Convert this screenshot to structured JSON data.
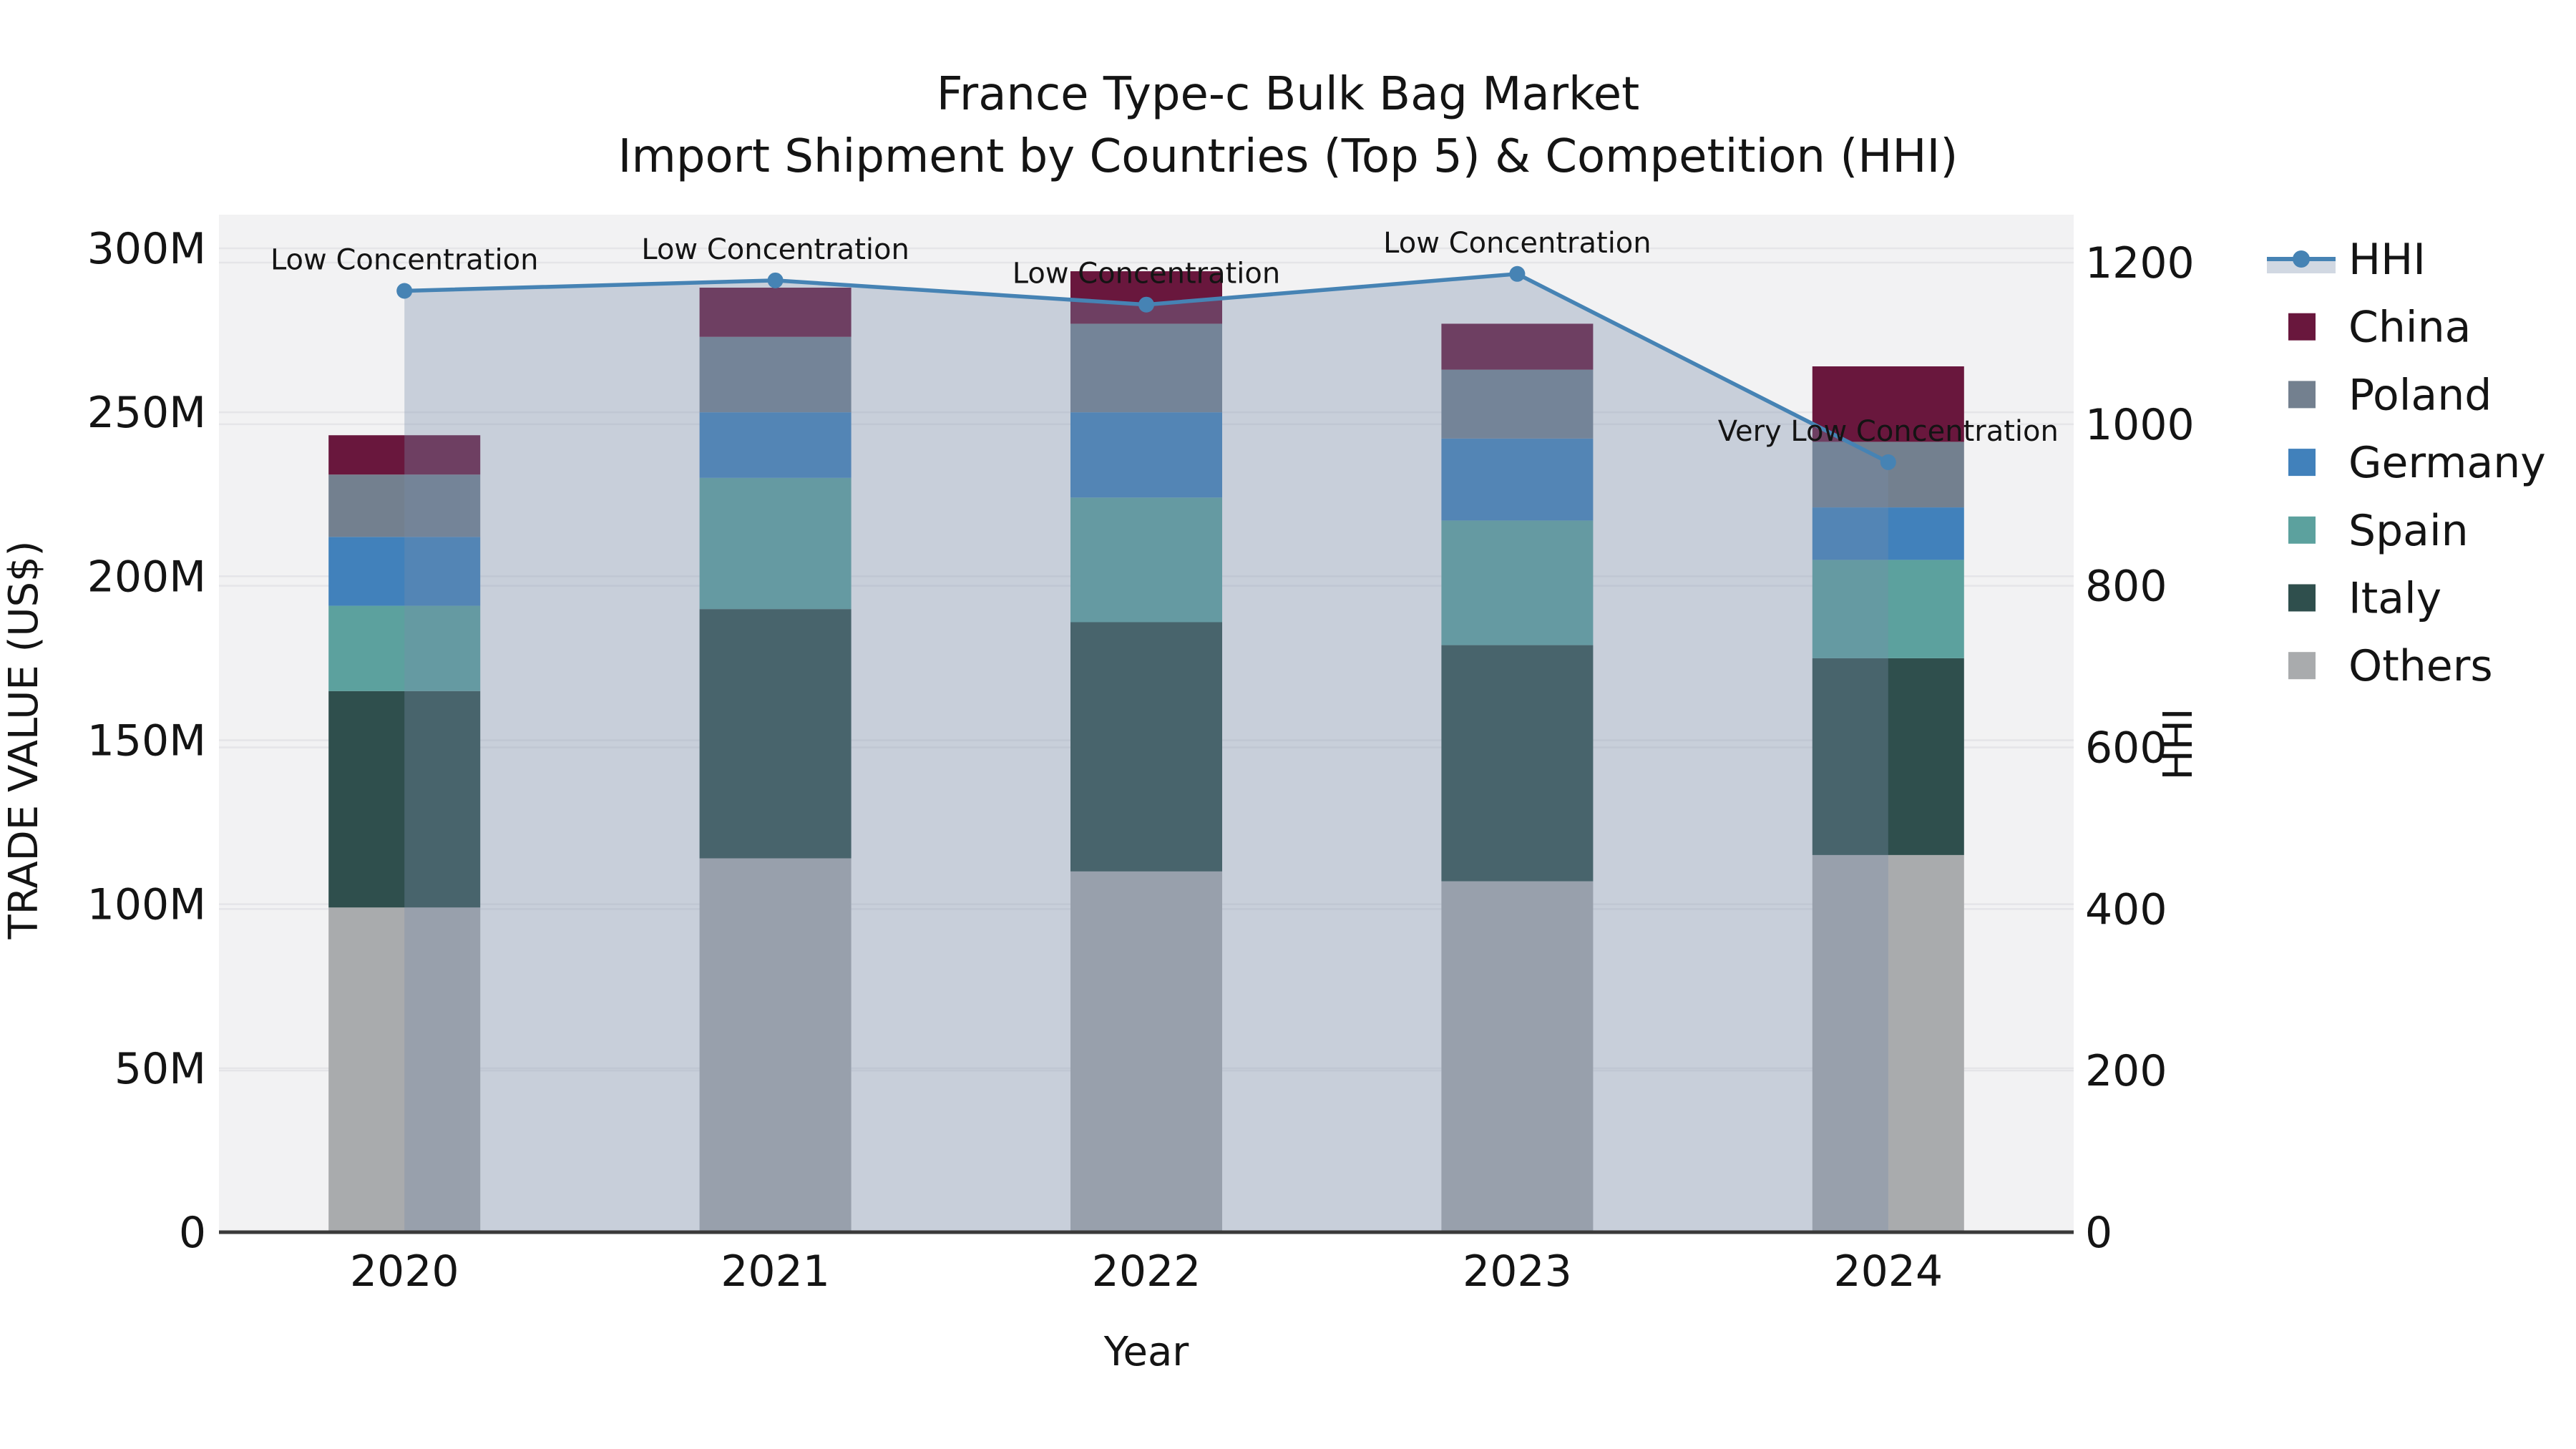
{
  "title": {
    "line1": "France Type-c Bulk Bag Market",
    "line2": "Import Shipment by Countries (Top 5) & Competition (HHI)"
  },
  "chart_data": {
    "type": "bar+line",
    "categories": [
      "2020",
      "2021",
      "2022",
      "2023",
      "2024"
    ],
    "bar_series": [
      {
        "name": "Others",
        "color": "#a9abad",
        "values": [
          99,
          114,
          110,
          107,
          115
        ]
      },
      {
        "name": "Italy",
        "color": "#2f4f4d",
        "values": [
          66,
          76,
          76,
          72,
          60
        ]
      },
      {
        "name": "Spain",
        "color": "#5ca19e",
        "values": [
          26,
          40,
          38,
          38,
          30
        ]
      },
      {
        "name": "Germany",
        "color": "#4181bb",
        "values": [
          21,
          20,
          26,
          25,
          16
        ]
      },
      {
        "name": "Poland",
        "color": "#73808f",
        "values": [
          19,
          23,
          27,
          21,
          20
        ]
      },
      {
        "name": "China",
        "color": "#69173d",
        "values": [
          12,
          15,
          16,
          14,
          23
        ]
      }
    ],
    "line_series": {
      "name": "HHI",
      "color": "#4683b4",
      "fill_color": "rgba(119,141,169,0.34)",
      "values": [
        1165,
        1178,
        1148,
        1186,
        953
      ]
    },
    "annotations": [
      "Low Concentration",
      "Low Concentration",
      "Low Concentration",
      "Low Concentration",
      "Very Low Concentration"
    ],
    "xlabel": "Year",
    "ylabel_left": "TRADE VALUE (US$)",
    "ylabel_right": "HHI",
    "y_left_ticks": [
      {
        "value": 0,
        "label": "0"
      },
      {
        "value": 50,
        "label": "50M"
      },
      {
        "value": 100,
        "label": "100M"
      },
      {
        "value": 150,
        "label": "150M"
      },
      {
        "value": 200,
        "label": "200M"
      },
      {
        "value": 250,
        "label": "250M"
      },
      {
        "value": 300,
        "label": "300M"
      }
    ],
    "y_left_max": 300,
    "y_right_ticks": [
      {
        "value": 0,
        "label": "0"
      },
      {
        "value": 200,
        "label": "200"
      },
      {
        "value": 400,
        "label": "400"
      },
      {
        "value": 600,
        "label": "600"
      },
      {
        "value": 800,
        "label": "800"
      },
      {
        "value": 1000,
        "label": "1000"
      },
      {
        "value": 1200,
        "label": "1200"
      }
    ],
    "y_right_max": 1200,
    "legend_order": [
      "HHI",
      "China",
      "Poland",
      "Germany",
      "Spain",
      "Italy",
      "Others"
    ],
    "colors": {
      "plot_background": "#f2f2f3",
      "gridline": "#e5e5e8",
      "axis_line": "#3a3a3a"
    }
  }
}
